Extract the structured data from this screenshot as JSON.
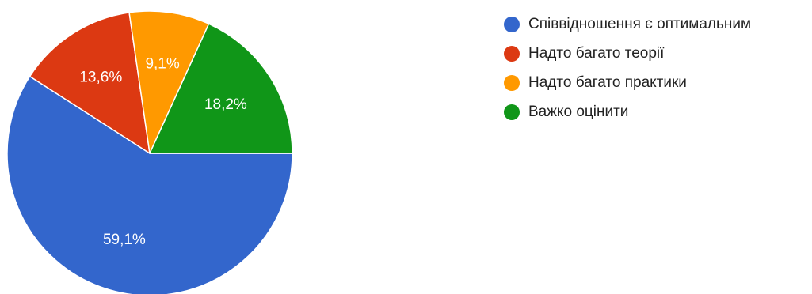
{
  "chart_data": {
    "type": "pie",
    "title": "",
    "slices": [
      {
        "label": "Співвідношення є оптимальним",
        "value": 59.1,
        "value_label": "59,1%",
        "color": "#3366cc"
      },
      {
        "label": "Надто багато теорії",
        "value": 13.6,
        "value_label": "13,6%",
        "color": "#dc3912"
      },
      {
        "label": "Надто багато практики",
        "value": 9.1,
        "value_label": "9,1%",
        "color": "#ff9900"
      },
      {
        "label": "Важко оцінити",
        "value": 18.2,
        "value_label": "18,2%",
        "color": "#109618"
      }
    ],
    "legend_position": "right"
  }
}
